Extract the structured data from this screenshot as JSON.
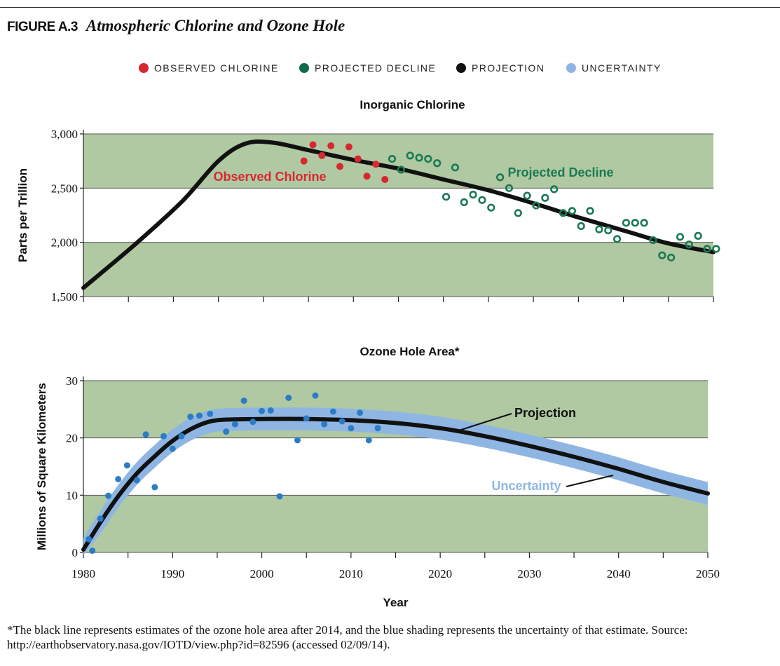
{
  "figure": {
    "label": "FIGURE A.3",
    "title": "Atmospheric Chlorine and Ozone Hole"
  },
  "legend": [
    {
      "label": "OBSERVED CHLORINE",
      "color": "#d7282f"
    },
    {
      "label": "PROJECTED DECLINE",
      "color": "#0e6b48"
    },
    {
      "label": "PROJECTION",
      "color": "#111111"
    },
    {
      "label": "UNCERTAINTY",
      "color": "#8fb6e3"
    }
  ],
  "colors": {
    "band": "#b0c9a2",
    "observed": "#d7282f",
    "projected": "#1a7a53",
    "projection": "#111111",
    "uncertainty": "#8fb6e3",
    "ozone_points": "#2b7cc4"
  },
  "footnote": "*The black line represents estimates of the ozone hole area after 2014, and the blue shading represents the uncertainty of that estimate. Source: http://earthobservatory.nasa.gov/IOTD/view.php?id=82596 (accessed 02/09/14).",
  "chart_data": [
    {
      "type": "scatter",
      "title": "Inorganic Chlorine",
      "ylabel": "Parts per Trillion",
      "xlim": [
        1980,
        2050
      ],
      "ylim": [
        1500,
        3000
      ],
      "yticks": [
        "1,500",
        "2,000",
        "2,500",
        "3,000"
      ],
      "ytick_values": [
        1500,
        2000,
        2500,
        3000
      ],
      "grid": true,
      "annotations": [
        "Observed Chlorine",
        "Projected Decline"
      ],
      "projection_curve": {
        "name": "Projection",
        "x": [
          1980,
          1986,
          1991,
          1995,
          1998,
          2001,
          2005,
          2010,
          2015,
          2020,
          2025,
          2030,
          2035,
          2040,
          2045,
          2050
        ],
        "y": [
          1580,
          2000,
          2380,
          2750,
          2910,
          2920,
          2850,
          2760,
          2680,
          2580,
          2480,
          2360,
          2230,
          2110,
          1990,
          1910
        ]
      },
      "series": [
        {
          "name": "Observed Chlorine",
          "marker": "filled",
          "x": [
            2004.5,
            2005.5,
            2006.5,
            2007.5,
            2008.5,
            2009.5,
            2010.5,
            2011.5,
            2012.5,
            2013.5
          ],
          "y": [
            2750,
            2900,
            2800,
            2890,
            2700,
            2880,
            2770,
            2610,
            2720,
            2580
          ]
        },
        {
          "name": "Projected Decline",
          "marker": "open",
          "x": [
            2014.3,
            2015.3,
            2016.3,
            2017.3,
            2018.3,
            2019.3,
            2020.3,
            2021.3,
            2022.3,
            2023.3,
            2024.3,
            2025.3,
            2026.3,
            2027.3,
            2028.3,
            2029.3,
            2030.3,
            2031.3,
            2032.3,
            2033.3,
            2034.3,
            2035.3,
            2036.3,
            2037.3,
            2038.3,
            2039.3,
            2040.3,
            2041.3,
            2042.3,
            2043.3,
            2044.3,
            2045.3,
            2046.3,
            2047.3,
            2048.3,
            2049.3,
            2050.3
          ],
          "y": [
            2770,
            2670,
            2800,
            2780,
            2770,
            2730,
            2420,
            2690,
            2370,
            2440,
            2390,
            2320,
            2600,
            2500,
            2270,
            2430,
            2340,
            2410,
            2490,
            2270,
            2290,
            2150,
            2290,
            2120,
            2110,
            2030,
            2180,
            2180,
            2180,
            2020,
            1880,
            1860,
            2050,
            1980,
            2060,
            1940,
            1940
          ]
        }
      ]
    },
    {
      "type": "scatter",
      "title": "Ozone Hole Area*",
      "ylabel": "Millions of Square Kilometers",
      "xlabel": "Year",
      "xlim": [
        1980,
        2050
      ],
      "ylim": [
        0,
        30
      ],
      "xticks": [
        1980,
        1990,
        2000,
        2010,
        2020,
        2030,
        2040,
        2050
      ],
      "yticks": [
        0,
        10,
        20,
        30
      ],
      "grid": true,
      "annotations": [
        "Projection",
        "Uncertainty"
      ],
      "projection_curve": {
        "name": "Projection",
        "x": [
          1980,
          1982,
          1984,
          1986,
          1988,
          1990,
          1992,
          1994,
          1996,
          2000,
          2005,
          2010,
          2015,
          2020,
          2025,
          2030,
          2035,
          2040,
          2045,
          2050
        ],
        "y": [
          0.5,
          5.5,
          10,
          13.8,
          16.8,
          19.5,
          21.5,
          22.8,
          23.2,
          23.3,
          23.3,
          23.1,
          22.6,
          21.7,
          20.3,
          18.6,
          16.7,
          14.6,
          12.3,
          10.3
        ],
        "uncertainty": 2.0
      },
      "series": [
        {
          "name": "Observed",
          "marker": "filled",
          "x": [
            1980.6,
            1981,
            1981.9,
            1982.8,
            1983.9,
            1984.9,
            1986,
            1987,
            1988,
            1989,
            1990,
            1991,
            1992,
            1993,
            1994.2,
            1996,
            1997,
            1998,
            1999,
            2000,
            2001,
            2002,
            2003,
            2004,
            2005,
            2006,
            2007,
            2008,
            2009,
            2010,
            2011,
            2012,
            2013
          ],
          "y": [
            2.3,
            0.3,
            5.9,
            9.9,
            12.8,
            15.2,
            12.6,
            20.6,
            11.4,
            20.3,
            18.1,
            20.3,
            23.7,
            23.9,
            24.2,
            21.1,
            22.4,
            26.5,
            22.8,
            24.7,
            24.8,
            9.8,
            27.0,
            19.6,
            23.4,
            27.4,
            22.4,
            24.6,
            22.9,
            21.7,
            24.4,
            19.6,
            21.7
          ]
        }
      ]
    }
  ]
}
